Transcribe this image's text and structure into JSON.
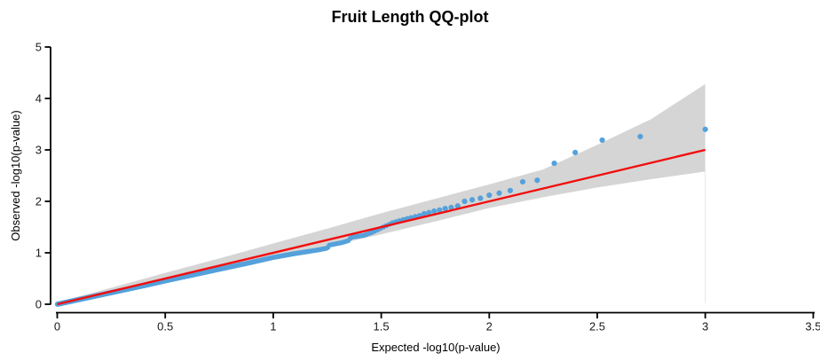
{
  "colors": {
    "point": "#55a1db",
    "identity_line": "#f20d0d",
    "band": "#d5d5d5",
    "band_edge": "#ececec",
    "axis": "#000000",
    "text": "#1a1a1a",
    "background": "#ffffff"
  },
  "chart_data": {
    "type": "scatter",
    "title": "Fruit Length QQ-plot",
    "xlabel": "Expected -log10(p-value)",
    "ylabel": "Observed -log10(p-value)",
    "xlim": [
      0,
      3.5
    ],
    "ylim": [
      0,
      5
    ],
    "x_ticks": [
      0,
      0.5,
      1,
      1.5,
      2,
      2.5,
      3,
      3.5
    ],
    "x_tick_labels": [
      "0",
      "0.5",
      "1",
      "1.5",
      "2",
      "2.5",
      "3",
      "3.5"
    ],
    "y_ticks": [
      0,
      1,
      2,
      3,
      4,
      5
    ],
    "y_tick_labels": [
      "0",
      "1",
      "2",
      "3",
      "4",
      "5"
    ],
    "grid": false,
    "legend": null,
    "n_points": 1000,
    "identity_line": {
      "from": [
        0,
        0
      ],
      "to": [
        3,
        3
      ]
    },
    "confidence_band": {
      "expected": [
        0,
        0.25,
        0.5,
        0.75,
        1.0,
        1.25,
        1.5,
        1.75,
        2.0,
        2.25,
        2.5,
        2.75,
        3.0
      ],
      "upper": [
        0.04,
        0.32,
        0.61,
        0.89,
        1.18,
        1.47,
        1.77,
        2.05,
        2.33,
        2.62,
        3.1,
        3.6,
        4.28
      ],
      "lower": [
        -0.04,
        0.2,
        0.43,
        0.66,
        0.89,
        1.12,
        1.36,
        1.61,
        1.87,
        2.08,
        2.27,
        2.43,
        2.58
      ]
    },
    "tail_points": [
      [
        3.0,
        3.4
      ],
      [
        2.699,
        3.26
      ],
      [
        2.523,
        3.19
      ],
      [
        2.398,
        2.95
      ],
      [
        2.301,
        2.74
      ],
      [
        2.222,
        2.41
      ],
      [
        2.155,
        2.38
      ],
      [
        2.097,
        2.21
      ],
      [
        2.046,
        2.16
      ],
      [
        2.0,
        2.12
      ],
      [
        1.959,
        2.06
      ],
      [
        1.921,
        2.03
      ],
      [
        1.886,
        2.0
      ],
      [
        1.854,
        1.91
      ],
      [
        1.824,
        1.88
      ],
      [
        1.796,
        1.86
      ],
      [
        1.77,
        1.83
      ],
      [
        1.745,
        1.81
      ],
      [
        1.721,
        1.78
      ],
      [
        1.699,
        1.76
      ],
      [
        1.678,
        1.72
      ],
      [
        1.658,
        1.7
      ],
      [
        1.638,
        1.68
      ],
      [
        1.62,
        1.66
      ],
      [
        1.602,
        1.64
      ],
      [
        1.585,
        1.62
      ],
      [
        1.569,
        1.6
      ],
      [
        1.553,
        1.58
      ]
    ],
    "trail_curve": [
      [
        0.0,
        0.0
      ],
      [
        0.1,
        0.09
      ],
      [
        0.2,
        0.18
      ],
      [
        0.3,
        0.27
      ],
      [
        0.4,
        0.36
      ],
      [
        0.5,
        0.455
      ],
      [
        0.6,
        0.545
      ],
      [
        0.7,
        0.635
      ],
      [
        0.8,
        0.725
      ],
      [
        0.9,
        0.815
      ],
      [
        1.0,
        0.91
      ],
      [
        1.1,
        0.985
      ],
      [
        1.2,
        1.05
      ],
      [
        1.25,
        1.09
      ],
      [
        1.26,
        1.15
      ],
      [
        1.32,
        1.2
      ],
      [
        1.35,
        1.24
      ],
      [
        1.36,
        1.3
      ],
      [
        1.42,
        1.34
      ],
      [
        1.46,
        1.4
      ],
      [
        1.49,
        1.46
      ],
      [
        1.52,
        1.52
      ],
      [
        1.54,
        1.56
      ]
    ]
  }
}
